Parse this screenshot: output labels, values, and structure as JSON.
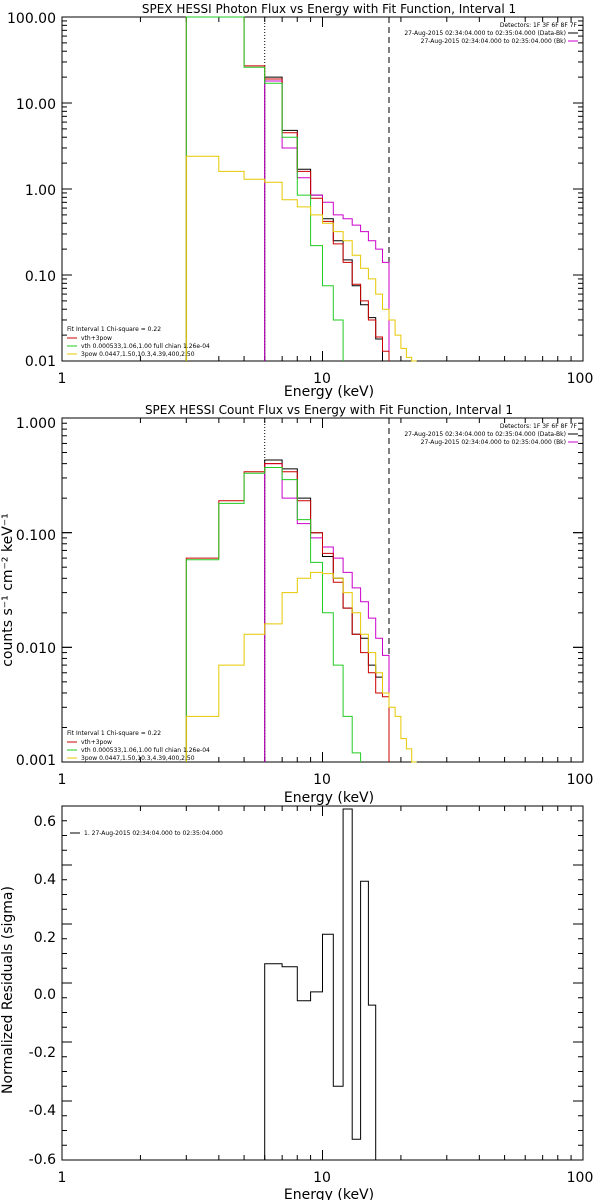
{
  "chart_data": [
    {
      "type": "line",
      "title": "SPEX HESSI Photon Flux vs Energy with Fit Function, Interval 1",
      "xlabel": "Energy (keV)",
      "ylabel": "",
      "xscale": "log",
      "yscale": "log",
      "xlim": [
        1,
        100
      ],
      "ylim": [
        0.01,
        100
      ],
      "xticks": [
        "1",
        "10",
        "100"
      ],
      "yticks": [
        "100.00",
        "10.00",
        "1.00",
        "0.10",
        "0.01"
      ],
      "vlines": {
        "dotted": 6,
        "dashed": 18
      },
      "info_top_right": [
        "Detectors: 1F 3F 6F 8F 7F",
        "27-Aug-2015 02:34:04.000 to 02:35:04.000 (Data-Bk)",
        "27-Aug-2015 02:34:04.000 to 02:35:04.000 (Bk)"
      ],
      "legend_bottom_left": [
        "Fit Interval 1   Chi-square = 0.22",
        "vth+3pow",
        "vth 0.000533,1.06,1.00  full chian 1.26e-04",
        "3pow 0.0447,1.50,10.3,4.39,400,2.50"
      ],
      "series": [
        {
          "name": "Data-Bk",
          "color": "#000000",
          "step": true,
          "edges": [
            6,
            7,
            8,
            9,
            10,
            11,
            12,
            13,
            14,
            15,
            16,
            17,
            18
          ],
          "values": [
            20.0,
            4.8,
            1.7,
            0.85,
            0.45,
            0.25,
            0.15,
            0.075,
            0.045,
            0.032,
            0.018,
            0.008
          ]
        },
        {
          "name": "Bk",
          "color": "#cc00cc",
          "step": true,
          "edges": [
            6,
            7,
            8,
            9,
            10,
            11,
            12,
            13,
            14,
            15,
            16,
            17,
            18
          ],
          "values": [
            18.0,
            3.0,
            1.35,
            0.85,
            0.7,
            0.5,
            0.45,
            0.38,
            0.32,
            0.25,
            0.2,
            0.14
          ]
        },
        {
          "name": "vth+3pow",
          "color": "#cc0000",
          "step": true,
          "edges": [
            3,
            4,
            5,
            6,
            7,
            8,
            9,
            10,
            11,
            12,
            13,
            14,
            15,
            16,
            17,
            18
          ],
          "values": [
            100,
            100,
            27.0,
            19.0,
            4.5,
            1.6,
            0.78,
            0.42,
            0.23,
            0.14,
            0.078,
            0.05,
            0.03,
            0.019,
            0.013
          ]
        },
        {
          "name": "vth",
          "color": "#22cc22",
          "step": true,
          "edges": [
            3,
            4,
            5,
            6,
            7,
            8,
            9,
            10,
            11,
            12
          ],
          "values": [
            100,
            100,
            26.0,
            17.0,
            4.0,
            0.85,
            0.22,
            0.075,
            0.03
          ]
        },
        {
          "name": "3pow",
          "color": "#e6c800",
          "step": true,
          "edges": [
            3,
            4,
            5,
            6,
            7,
            8,
            9,
            10,
            11,
            12,
            13,
            14,
            15,
            16,
            17,
            18,
            19,
            20,
            21,
            22,
            23
          ],
          "values": [
            2.4,
            1.6,
            1.3,
            1.2,
            0.75,
            0.62,
            0.5,
            0.4,
            0.32,
            0.25,
            0.17,
            0.12,
            0.09,
            0.06,
            0.04,
            0.03,
            0.02,
            0.014,
            0.011,
            0.01
          ]
        }
      ]
    },
    {
      "type": "line",
      "title": "SPEX HESSI Count Flux vs Energy with Fit Function, Interval 1",
      "xlabel": "Energy (keV)",
      "ylabel": "counts s⁻¹ cm⁻² keV⁻¹",
      "xscale": "log",
      "yscale": "log",
      "xlim": [
        1,
        100
      ],
      "ylim": [
        0.001,
        1
      ],
      "xticks": [
        "1",
        "10",
        "100"
      ],
      "yticks": [
        "1.000",
        "0.100",
        "0.010",
        "0.001"
      ],
      "vlines": {
        "dotted": 6,
        "dashed": 18
      },
      "info_top_right": [
        "Detectors: 1F 3F 6F 8F 7F",
        "27-Aug-2015 02:34:04.000 to 02:35:04.000 (Data-Bk)",
        "27-Aug-2015 02:34:04.000 to 02:35:04.000 (Bk)"
      ],
      "legend_bottom_left": [
        "Fit Interval 1   Chi-square = 0.22",
        "vth+3pow",
        "vth 0.000533,1.06,1.00  full chian 1.26e-04",
        "3pow 0.0447,1.50,10.3,4.39,400,2.50"
      ],
      "series": [
        {
          "name": "Data-Bk",
          "color": "#000000",
          "step": true,
          "edges": [
            6,
            7,
            8,
            9,
            10,
            11,
            12,
            13,
            14,
            15,
            16,
            17,
            18
          ],
          "values": [
            0.43,
            0.36,
            0.2,
            0.1,
            0.062,
            0.04,
            0.022,
            0.013,
            0.012,
            0.007,
            0.0055,
            0.004
          ]
        },
        {
          "name": "Bk",
          "color": "#cc00cc",
          "step": true,
          "edges": [
            6,
            7,
            8,
            9,
            10,
            11,
            12,
            13,
            14,
            15,
            16,
            17,
            18
          ],
          "values": [
            0.4,
            0.2,
            0.12,
            0.09,
            0.075,
            0.06,
            0.045,
            0.033,
            0.025,
            0.018,
            0.012,
            0.0085
          ]
        },
        {
          "name": "vth+3pow",
          "color": "#cc0000",
          "step": true,
          "edges": [
            3,
            4,
            5,
            6,
            7,
            8,
            9,
            10,
            11,
            12,
            13,
            14,
            15,
            16,
            17,
            18
          ],
          "values": [
            0.06,
            0.19,
            0.34,
            0.4,
            0.34,
            0.19,
            0.1,
            0.066,
            0.037,
            0.022,
            0.013,
            0.009,
            0.006,
            0.004,
            0.0037
          ]
        },
        {
          "name": "vth",
          "color": "#22cc22",
          "step": true,
          "edges": [
            3,
            4,
            5,
            6,
            7,
            8,
            9,
            10,
            11,
            12,
            13,
            14
          ],
          "values": [
            0.058,
            0.18,
            0.33,
            0.37,
            0.29,
            0.13,
            0.055,
            0.02,
            0.007,
            0.0025,
            0.0012
          ]
        },
        {
          "name": "3pow",
          "color": "#e6c800",
          "step": true,
          "edges": [
            3,
            4,
            5,
            6,
            7,
            8,
            9,
            10,
            11,
            12,
            13,
            14,
            15,
            16,
            17,
            18,
            19,
            20,
            21,
            22,
            23
          ],
          "values": [
            0.0025,
            0.007,
            0.013,
            0.016,
            0.03,
            0.04,
            0.045,
            0.044,
            0.04,
            0.03,
            0.02,
            0.013,
            0.009,
            0.006,
            0.004,
            0.003,
            0.0025,
            0.0016,
            0.0013,
            0.001
          ]
        }
      ]
    },
    {
      "type": "line",
      "title": "",
      "xlabel": "Energy (keV)",
      "ylabel": "Normalized Residuals (sigma)",
      "xscale": "log",
      "yscale": "linear",
      "xlim": [
        1,
        100
      ],
      "ylim": [
        -0.6,
        0.6
      ],
      "xticks": [
        "1",
        "10",
        "100"
      ],
      "yticks": [
        "0.6",
        "0.4",
        "0.2",
        "0.0",
        "-0.2",
        "-0.4",
        "-0.6"
      ],
      "legend_top_left": [
        "1. 27-Aug-2015 02:34:04.000 to 02:35:04.000"
      ],
      "series": [
        {
          "name": "",
          "color": "#000000",
          "step": true,
          "edges": [
            6,
            7,
            8,
            9,
            10,
            11,
            12,
            13,
            14,
            15,
            16,
            17,
            18
          ],
          "values": [
            0.065,
            0.055,
            -0.06,
            -0.03,
            0.165,
            -0.35,
            0.59,
            -0.53,
            0.345,
            -0.075,
            -0.62,
            -0.62
          ]
        }
      ]
    }
  ]
}
